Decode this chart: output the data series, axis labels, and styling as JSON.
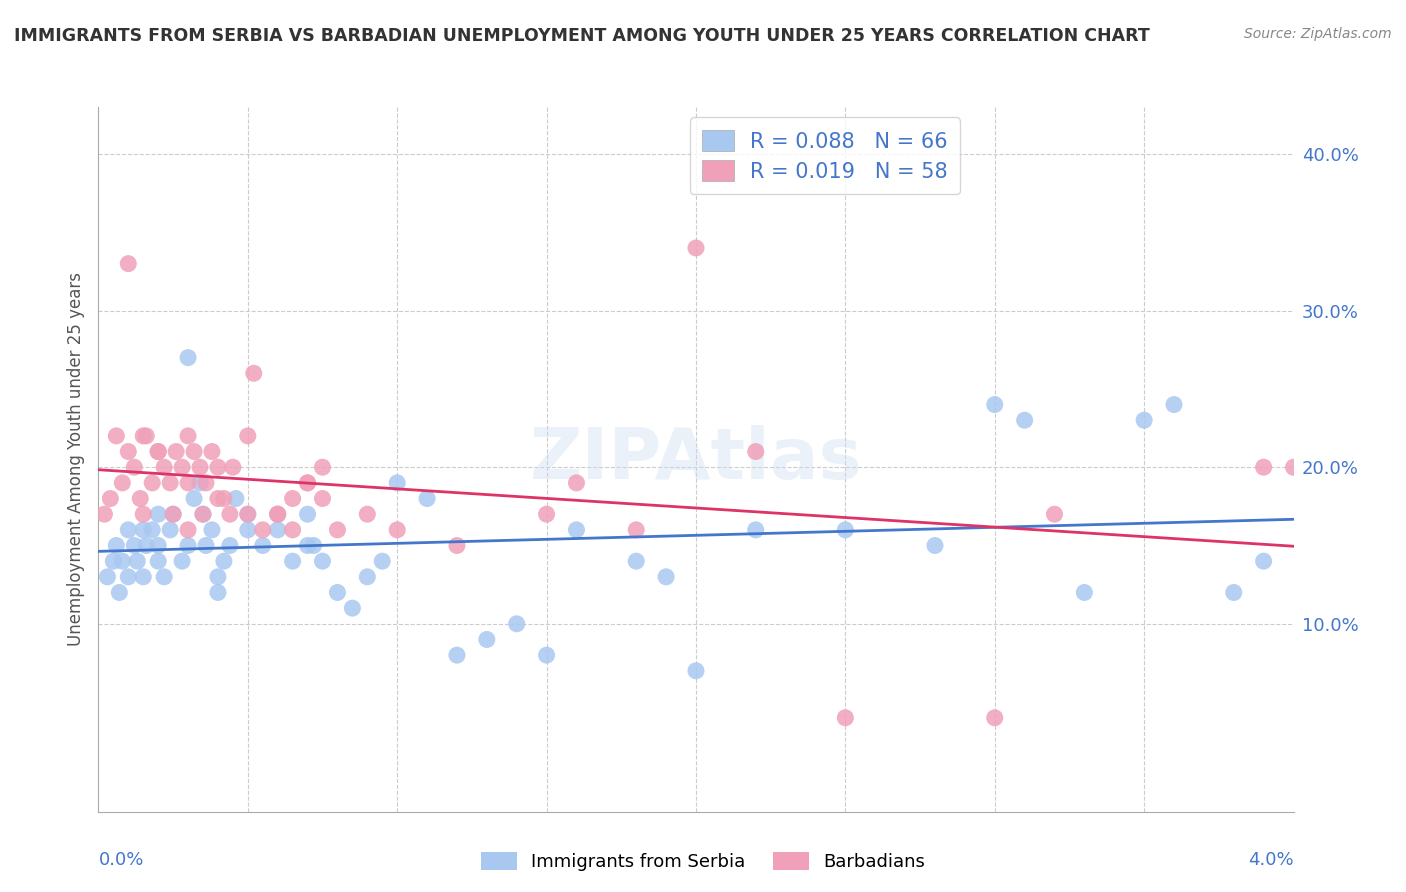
{
  "title": "IMMIGRANTS FROM SERBIA VS BARBADIAN UNEMPLOYMENT AMONG YOUTH UNDER 25 YEARS CORRELATION CHART",
  "source": "Source: ZipAtlas.com",
  "ylabel": "Unemployment Among Youth under 25 years",
  "xlim": [
    0.0,
    0.04
  ],
  "ylim": [
    -0.02,
    0.43
  ],
  "series1": {
    "name": "Immigrants from Serbia",
    "color": "#a8c8f0",
    "R": 0.088,
    "N": 66,
    "points_x": [
      0.0003,
      0.0005,
      0.0006,
      0.0007,
      0.0008,
      0.001,
      0.001,
      0.0012,
      0.0013,
      0.0015,
      0.0015,
      0.0016,
      0.0018,
      0.002,
      0.002,
      0.002,
      0.0022,
      0.0024,
      0.0025,
      0.0028,
      0.003,
      0.003,
      0.0032,
      0.0034,
      0.0035,
      0.0036,
      0.0038,
      0.004,
      0.004,
      0.0042,
      0.0044,
      0.0046,
      0.005,
      0.005,
      0.0055,
      0.006,
      0.006,
      0.0065,
      0.007,
      0.007,
      0.0072,
      0.0075,
      0.008,
      0.0085,
      0.009,
      0.0095,
      0.01,
      0.011,
      0.012,
      0.013,
      0.014,
      0.015,
      0.016,
      0.018,
      0.019,
      0.02,
      0.022,
      0.025,
      0.028,
      0.03,
      0.031,
      0.033,
      0.035,
      0.036,
      0.038,
      0.039
    ],
    "points_y": [
      0.13,
      0.14,
      0.15,
      0.12,
      0.14,
      0.13,
      0.16,
      0.15,
      0.14,
      0.13,
      0.16,
      0.15,
      0.16,
      0.14,
      0.17,
      0.15,
      0.13,
      0.16,
      0.17,
      0.14,
      0.15,
      0.27,
      0.18,
      0.19,
      0.17,
      0.15,
      0.16,
      0.13,
      0.12,
      0.14,
      0.15,
      0.18,
      0.17,
      0.16,
      0.15,
      0.17,
      0.16,
      0.14,
      0.15,
      0.17,
      0.15,
      0.14,
      0.12,
      0.11,
      0.13,
      0.14,
      0.19,
      0.18,
      0.08,
      0.09,
      0.1,
      0.08,
      0.16,
      0.14,
      0.13,
      0.07,
      0.16,
      0.16,
      0.15,
      0.24,
      0.23,
      0.12,
      0.23,
      0.24,
      0.12,
      0.14
    ]
  },
  "series2": {
    "name": "Barbadians",
    "color": "#f0a0b8",
    "R": 0.019,
    "N": 58,
    "points_x": [
      0.0002,
      0.0004,
      0.0006,
      0.0008,
      0.001,
      0.0012,
      0.0014,
      0.0015,
      0.0016,
      0.0018,
      0.002,
      0.0022,
      0.0024,
      0.0026,
      0.0028,
      0.003,
      0.003,
      0.0032,
      0.0034,
      0.0036,
      0.0038,
      0.004,
      0.0042,
      0.0044,
      0.005,
      0.0052,
      0.006,
      0.0065,
      0.007,
      0.0075,
      0.001,
      0.0015,
      0.002,
      0.0025,
      0.003,
      0.0035,
      0.004,
      0.0045,
      0.005,
      0.0055,
      0.006,
      0.0065,
      0.007,
      0.0075,
      0.008,
      0.009,
      0.01,
      0.012,
      0.015,
      0.016,
      0.018,
      0.02,
      0.022,
      0.025,
      0.03,
      0.032,
      0.039,
      0.04
    ],
    "points_y": [
      0.17,
      0.18,
      0.22,
      0.19,
      0.21,
      0.2,
      0.18,
      0.17,
      0.22,
      0.19,
      0.21,
      0.2,
      0.19,
      0.21,
      0.2,
      0.19,
      0.22,
      0.21,
      0.2,
      0.19,
      0.21,
      0.2,
      0.18,
      0.17,
      0.22,
      0.26,
      0.17,
      0.18,
      0.19,
      0.2,
      0.33,
      0.22,
      0.21,
      0.17,
      0.16,
      0.17,
      0.18,
      0.2,
      0.17,
      0.16,
      0.17,
      0.16,
      0.19,
      0.18,
      0.16,
      0.17,
      0.16,
      0.15,
      0.17,
      0.19,
      0.16,
      0.34,
      0.21,
      0.04,
      0.04,
      0.17,
      0.2,
      0.2
    ]
  },
  "background_color": "#ffffff",
  "grid_color": "#cccccc",
  "trend1_color": "#4477cc",
  "trend2_color": "#dd3366",
  "label_color": "#4477cc",
  "text_color": "#333333",
  "source_color": "#888888",
  "ytick_positions": [
    0.1,
    0.2,
    0.3,
    0.4
  ],
  "ytick_labels": [
    "10.0%",
    "20.0%",
    "30.0%",
    "40.0%"
  ]
}
